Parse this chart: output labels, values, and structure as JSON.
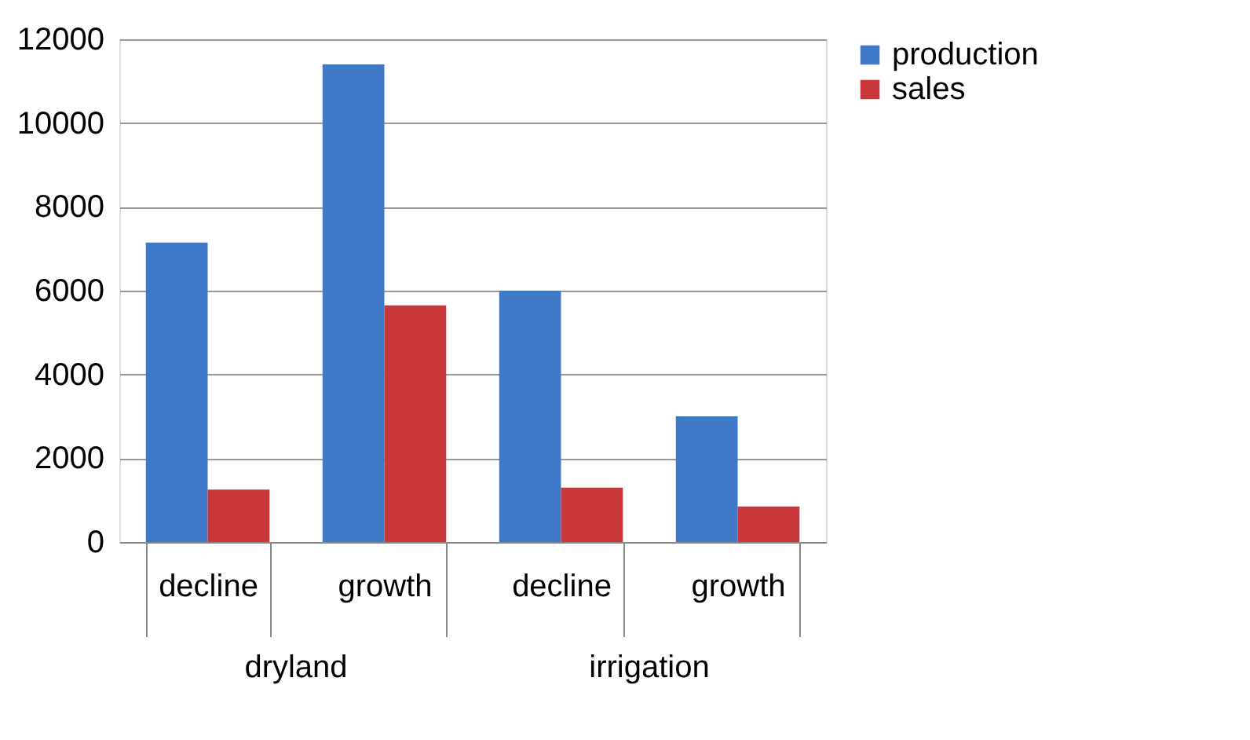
{
  "chart_data": {
    "type": "bar",
    "categories": [
      "decline",
      "growth",
      "decline",
      "growth"
    ],
    "series": [
      {
        "name": "production",
        "color": "#3f78c6",
        "values": [
          7150,
          11400,
          6000,
          3000
        ]
      },
      {
        "name": "sales",
        "color": "#c9373a",
        "values": [
          1250,
          5650,
          1300,
          850
        ]
      }
    ],
    "annotations": [
      "dryland",
      "irrigation"
    ],
    "ylim": [
      0,
      12000
    ],
    "yticks": [
      0,
      2000,
      4000,
      6000,
      8000,
      10000,
      12000
    ],
    "grid": "y",
    "legend": "right"
  }
}
